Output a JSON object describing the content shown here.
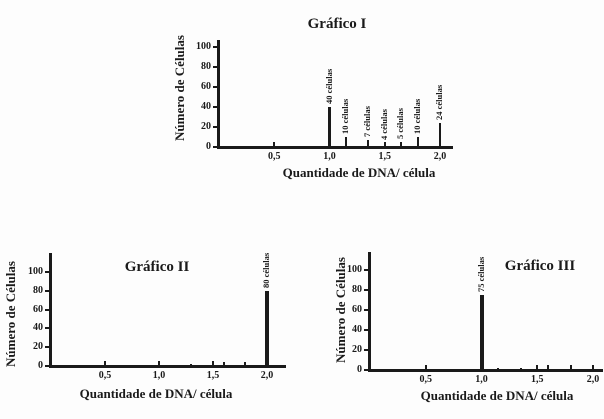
{
  "figure": {
    "background": "#fdfdfd",
    "ink_color": "#1a1a1a"
  },
  "chart_data": [
    {
      "type": "bar",
      "title": "Gráfico I",
      "xlabel": "Quantidade de DNA/ célula",
      "ylabel": "Número de Células",
      "x_tick_labels": [
        "0,5",
        "1,0",
        "1,5",
        "2,0"
      ],
      "x_tick_values": [
        0.5,
        1.0,
        1.5,
        2.0
      ],
      "y_tick_values": [
        0,
        20,
        40,
        60,
        80,
        100
      ],
      "xlim": [
        0,
        2.1
      ],
      "ylim": [
        0,
        107
      ],
      "grid": false,
      "legend": null,
      "bars": [
        {
          "x": 1.0,
          "count": 40,
          "label": "40 células"
        },
        {
          "x": 1.15,
          "count": 10,
          "label": "10 células"
        },
        {
          "x": 1.35,
          "count": 7,
          "label": "7 células"
        },
        {
          "x": 1.5,
          "count": 4,
          "label": "4 células"
        },
        {
          "x": 1.65,
          "count": 5,
          "label": "5 células"
        },
        {
          "x": 1.8,
          "count": 10,
          "label": "10 células"
        },
        {
          "x": 2.0,
          "count": 24,
          "label": "24 células"
        }
      ]
    },
    {
      "type": "bar",
      "title": "Gráfico II",
      "xlabel": "Quantidade de DNA/ célula",
      "ylabel": "Número de Células",
      "x_tick_labels": [
        "0,5",
        "1,0",
        "1,5",
        "2,0"
      ],
      "x_tick_values": [
        0.5,
        1.0,
        1.5,
        2.0
      ],
      "y_tick_values": [
        0,
        20,
        40,
        60,
        80,
        100
      ],
      "xlim": [
        0,
        2.15
      ],
      "ylim": [
        0,
        118
      ],
      "grid": false,
      "legend": null,
      "bars": [
        {
          "x": 1.3,
          "count": 2,
          "label": ""
        },
        {
          "x": 1.6,
          "count": 4,
          "label": ""
        },
        {
          "x": 1.8,
          "count": 4,
          "label": ""
        },
        {
          "x": 2.0,
          "count": 80,
          "label": "80 células"
        }
      ]
    },
    {
      "type": "bar",
      "title": "Gráfico III",
      "xlabel": "Quantidade de DNA/ célula",
      "ylabel": "Número de Células",
      "x_tick_labels": [
        "0,5",
        "1,0",
        "1,5",
        "2,0"
      ],
      "x_tick_values": [
        0.5,
        1.0,
        1.5,
        2.0
      ],
      "y_tick_values": [
        0,
        20,
        40,
        60,
        80,
        100
      ],
      "xlim": [
        0,
        2.07
      ],
      "ylim": [
        0,
        118
      ],
      "grid": false,
      "legend": null,
      "bars": [
        {
          "x": 1.0,
          "count": 75,
          "label": "75 células"
        },
        {
          "x": 1.15,
          "count": 2,
          "label": ""
        },
        {
          "x": 1.35,
          "count": 2,
          "label": ""
        },
        {
          "x": 1.6,
          "count": 5,
          "label": ""
        },
        {
          "x": 1.8,
          "count": 5,
          "label": ""
        }
      ]
    }
  ]
}
